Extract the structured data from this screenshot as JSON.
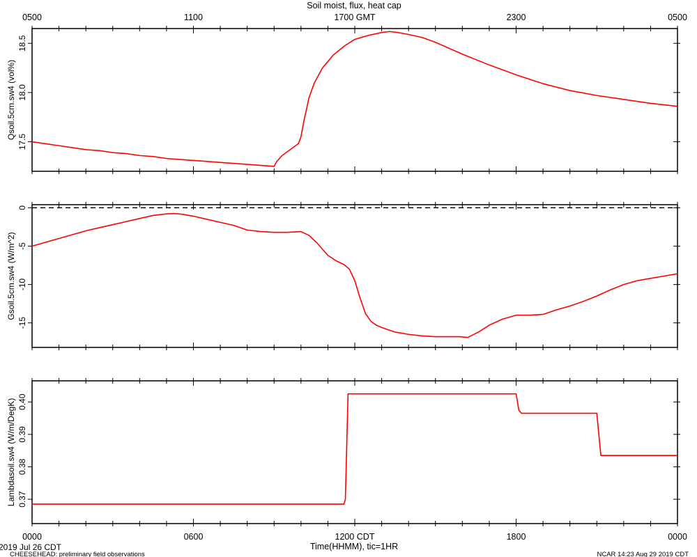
{
  "title": "Soil moist, flux, heat cap",
  "top_axis": {
    "tick_labels": [
      "0500",
      "1100",
      "1700 GMT",
      "2300",
      "0500"
    ]
  },
  "bottom_axis": {
    "tick_labels": [
      "0000",
      "0600",
      "1200 CDT",
      "1800",
      "0000"
    ],
    "label": "Time(HHMM), tic=1HR"
  },
  "footer": {
    "date": "2019 Jul 26 CDT",
    "project": "CHEESEHEAD: preliminary field observations",
    "stamp": "NCAR 14:23 Aug 29 2019 CDT"
  },
  "colors": {
    "series": "#ff0000",
    "axes": "#000000",
    "zero_line": "#000000"
  },
  "chart_data": [
    {
      "type": "line",
      "ylabel": "Qsoil.5cm.sw4 (vol%)",
      "ylim": [
        17.2,
        18.65
      ],
      "yticks": [
        17.5,
        18.0,
        18.5
      ],
      "ytick_labels": [
        "17.5",
        "18.0",
        "18.5"
      ],
      "grid": false,
      "series": [
        {
          "x": [
            0,
            0.5,
            1,
            1.5,
            2,
            2.5,
            3,
            3.5,
            4,
            4.5,
            5,
            5.5,
            6,
            6.5,
            7,
            7.5,
            8,
            8.5,
            9,
            9.1,
            9.3,
            9.6,
            9.9,
            10.0,
            10.1,
            10.3,
            10.5,
            10.8,
            11.2,
            11.6,
            12.0,
            12.5,
            13.0,
            13.3,
            13.6,
            14.0,
            14.5,
            15.0,
            15.5,
            16.0,
            17.0,
            18.0,
            19.0,
            20.0,
            21.0,
            22.0,
            23.0,
            24.0
          ],
          "y": [
            17.5,
            17.48,
            17.46,
            17.44,
            17.42,
            17.41,
            17.39,
            17.38,
            17.36,
            17.35,
            17.33,
            17.32,
            17.31,
            17.3,
            17.29,
            17.28,
            17.27,
            17.26,
            17.25,
            17.3,
            17.36,
            17.42,
            17.48,
            17.55,
            17.7,
            17.95,
            18.1,
            18.25,
            18.38,
            18.47,
            18.54,
            18.58,
            18.61,
            18.62,
            18.61,
            18.59,
            18.56,
            18.51,
            18.45,
            18.39,
            18.28,
            18.18,
            18.09,
            18.02,
            17.97,
            17.93,
            17.89,
            17.86
          ]
        }
      ]
    },
    {
      "type": "line",
      "ylabel": "Gsoil.5cm.sw4 (W/m^2)",
      "ylim": [
        -18.2,
        0.4
      ],
      "yticks": [
        0,
        -5,
        -10,
        -15
      ],
      "ytick_labels": [
        "0",
        "-5",
        "-10",
        "-15"
      ],
      "zero_line": 0,
      "grid": false,
      "series": [
        {
          "x": [
            0,
            0.5,
            1,
            1.5,
            2,
            2.5,
            3,
            3.5,
            4,
            4.5,
            5,
            5.3,
            5.6,
            6,
            6.5,
            7,
            7.5,
            8,
            8.5,
            9,
            9.5,
            10,
            10.3,
            10.6,
            11,
            11.3,
            11.6,
            11.8,
            12.0,
            12.2,
            12.4,
            12.6,
            12.8,
            13.0,
            13.5,
            14,
            14.5,
            15,
            15.5,
            15.9,
            16.2,
            16.6,
            17,
            17.5,
            18,
            18.5,
            19,
            19.5,
            20,
            20.5,
            21,
            21.5,
            22,
            22.5,
            23,
            23.5,
            24
          ],
          "y": [
            -5.0,
            -4.5,
            -4.0,
            -3.5,
            -3.0,
            -2.6,
            -2.2,
            -1.8,
            -1.4,
            -1.0,
            -0.8,
            -0.75,
            -0.85,
            -1.1,
            -1.5,
            -1.9,
            -2.3,
            -2.9,
            -3.1,
            -3.2,
            -3.2,
            -3.1,
            -3.6,
            -4.6,
            -6.2,
            -6.9,
            -7.4,
            -8.0,
            -9.5,
            -11.8,
            -13.8,
            -14.8,
            -15.3,
            -15.6,
            -16.2,
            -16.5,
            -16.7,
            -16.8,
            -16.8,
            -16.8,
            -16.9,
            -16.2,
            -15.3,
            -14.5,
            -14.0,
            -14.0,
            -13.9,
            -13.3,
            -12.8,
            -12.2,
            -11.5,
            -10.7,
            -10.0,
            -9.5,
            -9.2,
            -8.9,
            -8.6
          ]
        }
      ]
    },
    {
      "type": "line",
      "ylabel": "Lambdasoil.sw4 (W/m/DegK)",
      "ylim": [
        0.3625,
        0.4065
      ],
      "yticks": [
        0.37,
        0.38,
        0.39,
        0.4
      ],
      "ytick_labels": [
        "0.37",
        "0.38",
        "0.39",
        "0.40"
      ],
      "grid": false,
      "series": [
        {
          "x": [
            0,
            11.6,
            11.65,
            11.75,
            18.0,
            18.1,
            18.2,
            21.0,
            21.15,
            24
          ],
          "y": [
            0.3685,
            0.3685,
            0.37,
            0.4025,
            0.4025,
            0.3975,
            0.3965,
            0.3965,
            0.3835,
            0.3835
          ]
        }
      ]
    }
  ]
}
